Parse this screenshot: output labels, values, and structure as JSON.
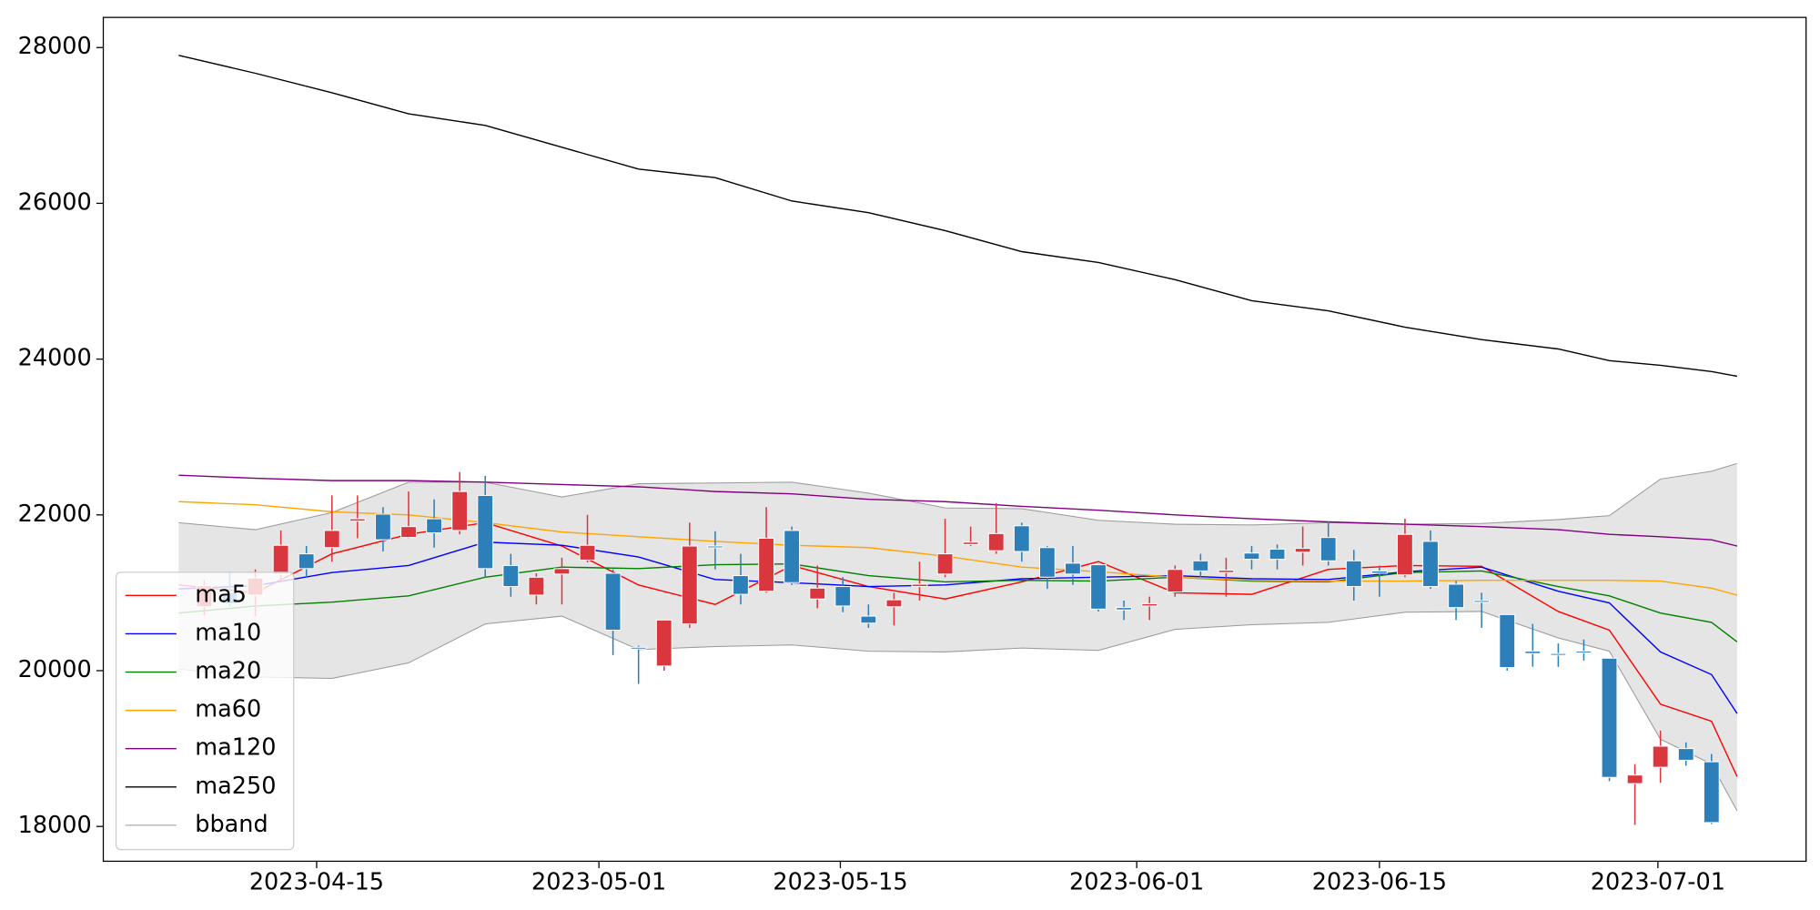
{
  "chart_data": {
    "type": "candlestick",
    "open": [
      20820,
      21000,
      20970,
      21240,
      21500,
      21580,
      21920,
      22010,
      21710,
      21950,
      21800,
      22250,
      21350,
      20970,
      21240,
      21420,
      21250,
      20300,
      20060,
      20600,
      21600,
      21220,
      21020,
      21800,
      20920,
      21080,
      20700,
      20820,
      21080,
      21240,
      21620,
      21540,
      21860,
      21580,
      21380,
      21360,
      20810,
      20830,
      21010,
      21410,
      21260,
      21510,
      21560,
      21520,
      21710,
      21410,
      21280,
      21230,
      21660,
      21110,
      20900,
      20720,
      20250,
      20220,
      20250,
      20160,
      18550,
      18760,
      19000,
      18830
    ],
    "high": [
      21160,
      21270,
      21300,
      21800,
      21600,
      22250,
      22250,
      22100,
      22300,
      22200,
      22550,
      22500,
      21500,
      21250,
      21450,
      22000,
      21300,
      20320,
      20650,
      21900,
      21790,
      21500,
      22100,
      21850,
      21350,
      21200,
      20850,
      21000,
      21400,
      21950,
      21850,
      22150,
      21900,
      21600,
      21600,
      21370,
      20900,
      20950,
      21350,
      21500,
      21450,
      21600,
      21620,
      21850,
      21920,
      21550,
      21350,
      21950,
      21800,
      21150,
      21000,
      20720,
      20600,
      20350,
      20400,
      20160,
      18800,
      19230,
      19080,
      18930
    ],
    "low": [
      20710,
      20830,
      20700,
      21130,
      21200,
      21400,
      21700,
      21530,
      21700,
      21580,
      21750,
      21200,
      20950,
      20850,
      20850,
      21390,
      20200,
      19830,
      20000,
      20550,
      21300,
      20850,
      21000,
      21100,
      20800,
      20750,
      20550,
      20580,
      20900,
      21200,
      21600,
      21500,
      21400,
      21050,
      21100,
      20760,
      20650,
      20650,
      20950,
      21200,
      20950,
      21300,
      21300,
      21350,
      21350,
      20900,
      20950,
      21200,
      21050,
      20650,
      20550,
      20000,
      20050,
      20050,
      20130,
      18580,
      18020,
      18560,
      18780,
      18030
    ],
    "close": [
      21090,
      20860,
      21190,
      21610,
      21310,
      21800,
      21950,
      21680,
      21850,
      21770,
      22300,
      21310,
      21080,
      21200,
      21310,
      21610,
      20520,
      20280,
      20650,
      21600,
      21580,
      20980,
      21700,
      21130,
      21060,
      20830,
      20610,
      20910,
      21110,
      21500,
      21650,
      21760,
      21530,
      21200,
      21240,
      20790,
      20780,
      20860,
      21300,
      21280,
      21290,
      21430,
      21430,
      21570,
      21410,
      21080,
      21250,
      21750,
      21080,
      20810,
      20880,
      20040,
      20220,
      20200,
      20230,
      18630,
      18660,
      19030,
      18850,
      18050
    ],
    "up_color": "#d9363e",
    "down_color": "#2d7fba",
    "line_x": [
      -1,
      2,
      5,
      8,
      11,
      14,
      17,
      20,
      23,
      26,
      29,
      32,
      35,
      38,
      41,
      44,
      47,
      50,
      53,
      55,
      57,
      59,
      60
    ],
    "series": [
      {
        "name": "ma5",
        "color": "#ff0000",
        "values": [
          21100,
          21000,
          21500,
          21750,
          21900,
          21600,
          21100,
          20850,
          21350,
          21080,
          20920,
          21140,
          21400,
          21000,
          20980,
          21300,
          21350,
          21340,
          20760,
          20520,
          19570,
          19350,
          18640
        ]
      },
      {
        "name": "ma10",
        "color": "#0000ff",
        "values": [
          21050,
          21090,
          21260,
          21350,
          21650,
          21610,
          21460,
          21170,
          21130,
          21080,
          21100,
          21180,
          21200,
          21220,
          21180,
          21170,
          21270,
          21330,
          21020,
          20870,
          20240,
          19950,
          19450
        ]
      },
      {
        "name": "ma20",
        "color": "#008000",
        "values": [
          20740,
          20830,
          20880,
          20960,
          21200,
          21330,
          21310,
          21360,
          21370,
          21220,
          21140,
          21160,
          21150,
          21200,
          21150,
          21140,
          21260,
          21280,
          21080,
          20960,
          20740,
          20620,
          20370
        ]
      },
      {
        "name": "ma60",
        "color": "#ffa500",
        "values": [
          22170,
          22130,
          22040,
          22000,
          21900,
          21780,
          21720,
          21660,
          21610,
          21580,
          21470,
          21330,
          21270,
          21200,
          21160,
          21150,
          21150,
          21160,
          21160,
          21160,
          21150,
          21060,
          20970
        ]
      },
      {
        "name": "ma120",
        "color": "#800080",
        "values": [
          22510,
          22470,
          22440,
          22440,
          22420,
          22390,
          22360,
          22300,
          22270,
          22200,
          22170,
          22110,
          22060,
          22000,
          21950,
          21910,
          21880,
          21850,
          21810,
          21750,
          21720,
          21680,
          21600
        ]
      },
      {
        "name": "ma250",
        "color": "#000000",
        "values": [
          27900,
          27670,
          27420,
          27150,
          27000,
          26720,
          26440,
          26330,
          26030,
          25880,
          25650,
          25380,
          25240,
          25020,
          24750,
          24620,
          24410,
          24250,
          24130,
          23980,
          23920,
          23840,
          23780
        ]
      }
    ],
    "band": {
      "name": "bband",
      "color": "#999999",
      "fill": "#e5e5e5",
      "upper": [
        21900,
        21810,
        22030,
        22420,
        22420,
        22230,
        22400,
        22410,
        22420,
        22280,
        22090,
        22080,
        21930,
        21880,
        21870,
        21900,
        21880,
        21890,
        21940,
        21990,
        22460,
        22560,
        22660
      ],
      "lower": [
        20020,
        19920,
        19900,
        20100,
        20600,
        20700,
        20270,
        20310,
        20330,
        20250,
        20240,
        20290,
        20260,
        20530,
        20590,
        20620,
        20750,
        20760,
        20420,
        20250,
        19120,
        18800,
        18200
      ]
    },
    "xlim": [
      -3.95,
      62.7
    ],
    "ylim": [
      17553,
      28387
    ],
    "yticks": [
      18000,
      20000,
      22000,
      24000,
      26000,
      28000
    ],
    "xticks": [
      {
        "value": 4.4,
        "label": "2023-04-15"
      },
      {
        "value": 15.45,
        "label": "2023-05-01"
      },
      {
        "value": 24.9,
        "label": "2023-05-15"
      },
      {
        "value": 36.5,
        "label": "2023-06-01"
      },
      {
        "value": 46.0,
        "label": "2023-06-15"
      },
      {
        "value": 56.9,
        "label": "2023-07-01"
      }
    ],
    "legend": "lower left"
  }
}
